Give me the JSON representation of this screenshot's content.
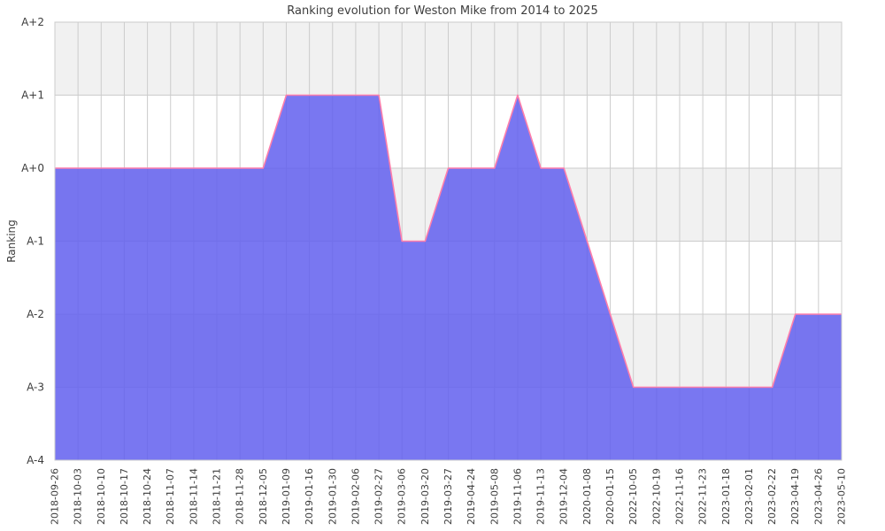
{
  "chart_data": {
    "type": "area",
    "title": "Ranking evolution for Weston Mike from 2014 to 2025",
    "xlabel": "",
    "ylabel": "Ranking",
    "legend_position": "none",
    "grid": true,
    "ylim": [
      -4,
      2
    ],
    "yticks": [
      {
        "value": 2,
        "label": "A+2"
      },
      {
        "value": 1,
        "label": "A+1"
      },
      {
        "value": 0,
        "label": "A+0"
      },
      {
        "value": -1,
        "label": "A-1"
      },
      {
        "value": -2,
        "label": "A-2"
      },
      {
        "value": -3,
        "label": "A-3"
      },
      {
        "value": -4,
        "label": "A-4"
      }
    ],
    "x": [
      "2018-09-26",
      "2018-10-03",
      "2018-10-10",
      "2018-10-17",
      "2018-10-24",
      "2018-11-07",
      "2018-11-14",
      "2018-11-21",
      "2018-11-28",
      "2018-12-05",
      "2019-01-09",
      "2019-01-16",
      "2019-01-30",
      "2019-02-06",
      "2019-02-27",
      "2019-03-06",
      "2019-03-20",
      "2019-03-27",
      "2019-04-24",
      "2019-05-08",
      "2019-11-06",
      "2019-11-13",
      "2019-12-04",
      "2020-01-08",
      "2020-01-15",
      "2022-10-05",
      "2022-10-19",
      "2022-11-16",
      "2022-11-23",
      "2023-01-18",
      "2023-02-01",
      "2023-02-22",
      "2023-04-19",
      "2023-04-26",
      "2023-05-10"
    ],
    "series": [
      {
        "name": "Ranking",
        "values": [
          0,
          0,
          0,
          0,
          0,
          0,
          0,
          0,
          0,
          0,
          1,
          1,
          1,
          1,
          1,
          -1,
          -1,
          0,
          0,
          0,
          1,
          0,
          0,
          -1,
          -2,
          -3,
          -3,
          -3,
          -3,
          -3,
          -3,
          -3,
          -2,
          -2,
          -2
        ]
      }
    ],
    "colors": {
      "area_fill": "rgba(98,95,238,0.85)",
      "line": "#ff7fab",
      "band_alt": "#f1f1f1",
      "band_main": "#ffffff",
      "gridline": "#cccccc",
      "border": "#cccccc",
      "text": "#3d3d3d"
    }
  }
}
